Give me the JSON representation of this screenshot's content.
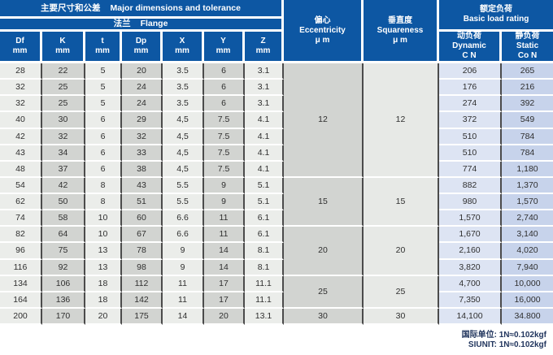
{
  "table": {
    "group_headers": {
      "major": {
        "zh": "主要尺寸和公差",
        "en": "Major dimensions and tolerance"
      },
      "flange": {
        "zh": "法兰",
        "en": "Flange"
      },
      "eccentricity": {
        "zh": "偏心",
        "en": "Eccentricity",
        "unit": "μ m"
      },
      "squareness": {
        "zh": "垂直度",
        "en": "Squareness",
        "unit": "μ m"
      },
      "basic_load": {
        "zh": "额定负荷",
        "en": "Basic load rating"
      },
      "dynamic": {
        "zh": "动负荷",
        "en": "Dynamic",
        "unit": "C N"
      },
      "static": {
        "zh": "静负荷",
        "en": "Static",
        "unit": "Co N"
      }
    },
    "columns": [
      {
        "label": "Df",
        "unit": "mm"
      },
      {
        "label": "K",
        "unit": "mm"
      },
      {
        "label": "t",
        "unit": "mm"
      },
      {
        "label": "Dp",
        "unit": "mm"
      },
      {
        "label": "X",
        "unit": "mm"
      },
      {
        "label": "Y",
        "unit": "mm"
      },
      {
        "label": "Z",
        "unit": "mm"
      }
    ],
    "rows": [
      {
        "df": "28",
        "k": "22",
        "t": "5",
        "dp": "20",
        "x": "3.5",
        "y": "6",
        "z": "3.1",
        "dynamic": "206",
        "static": "265"
      },
      {
        "df": "32",
        "k": "25",
        "t": "5",
        "dp": "24",
        "x": "3.5",
        "y": "6",
        "z": "3.1",
        "dynamic": "176",
        "static": "216"
      },
      {
        "df": "32",
        "k": "25",
        "t": "5",
        "dp": "24",
        "x": "3.5",
        "y": "6",
        "z": "3.1",
        "dynamic": "274",
        "static": "392"
      },
      {
        "df": "40",
        "k": "30",
        "t": "6",
        "dp": "29",
        "x": "4,5",
        "y": "7.5",
        "z": "4.1",
        "dynamic": "372",
        "static": "549"
      },
      {
        "df": "42",
        "k": "32",
        "t": "6",
        "dp": "32",
        "x": "4,5",
        "y": "7.5",
        "z": "4.1",
        "dynamic": "510",
        "static": "784"
      },
      {
        "df": "43",
        "k": "34",
        "t": "6",
        "dp": "33",
        "x": "4,5",
        "y": "7.5",
        "z": "4.1",
        "dynamic": "510",
        "static": "784"
      },
      {
        "df": "48",
        "k": "37",
        "t": "6",
        "dp": "38",
        "x": "4,5",
        "y": "7.5",
        "z": "4.1",
        "dynamic": "774",
        "static": "1,180"
      },
      {
        "df": "54",
        "k": "42",
        "t": "8",
        "dp": "43",
        "x": "5.5",
        "y": "9",
        "z": "5.1",
        "dynamic": "882",
        "static": "1,370"
      },
      {
        "df": "62",
        "k": "50",
        "t": "8",
        "dp": "51",
        "x": "5.5",
        "y": "9",
        "z": "5.1",
        "dynamic": "980",
        "static": "1,570"
      },
      {
        "df": "74",
        "k": "58",
        "t": "10",
        "dp": "60",
        "x": "6.6",
        "y": "11",
        "z": "6.1",
        "dynamic": "1,570",
        "static": "2,740"
      },
      {
        "df": "82",
        "k": "64",
        "t": "10",
        "dp": "67",
        "x": "6.6",
        "y": "11",
        "z": "6.1",
        "dynamic": "1,670",
        "static": "3,140"
      },
      {
        "df": "96",
        "k": "75",
        "t": "13",
        "dp": "78",
        "x": "9",
        "y": "14",
        "z": "8.1",
        "dynamic": "2,160",
        "static": "4,020"
      },
      {
        "df": "116",
        "k": "92",
        "t": "13",
        "dp": "98",
        "x": "9",
        "y": "14",
        "z": "8.1",
        "dynamic": "3,820",
        "static": "7,940"
      },
      {
        "df": "134",
        "k": "106",
        "t": "18",
        "dp": "112",
        "x": "11",
        "y": "17",
        "z": "11.1",
        "dynamic": "4,700",
        "static": "10,000"
      },
      {
        "df": "164",
        "k": "136",
        "t": "18",
        "dp": "142",
        "x": "11",
        "y": "17",
        "z": "11.1",
        "dynamic": "7,350",
        "static": "16,000"
      },
      {
        "df": "200",
        "k": "170",
        "t": "20",
        "dp": "175",
        "x": "14",
        "y": "20",
        "z": "13.1",
        "dynamic": "14,100",
        "static": "34.800"
      }
    ],
    "groups": [
      {
        "eccentricity": "12",
        "squareness": "12",
        "span": 7
      },
      {
        "eccentricity": "15",
        "squareness": "15",
        "span": 3
      },
      {
        "eccentricity": "20",
        "squareness": "20",
        "span": 3
      },
      {
        "eccentricity": "25",
        "squareness": "25",
        "span": 2
      },
      {
        "eccentricity": "30",
        "squareness": "30",
        "span": 1
      }
    ]
  },
  "footer": {
    "line1": "国际单位: 1N≈0.102kgf",
    "line2": "SIUNIT: 1N≈0.102kgf"
  },
  "colors": {
    "header_blue": "#0d57a3",
    "col_light": "#ebedea",
    "col_dark": "#d2d4d1",
    "squareness_bg": "#e7e9e6",
    "dynamic_bg": "#dde4f3",
    "static_bg": "#c7d3eb",
    "footer_color": "#22365e"
  }
}
